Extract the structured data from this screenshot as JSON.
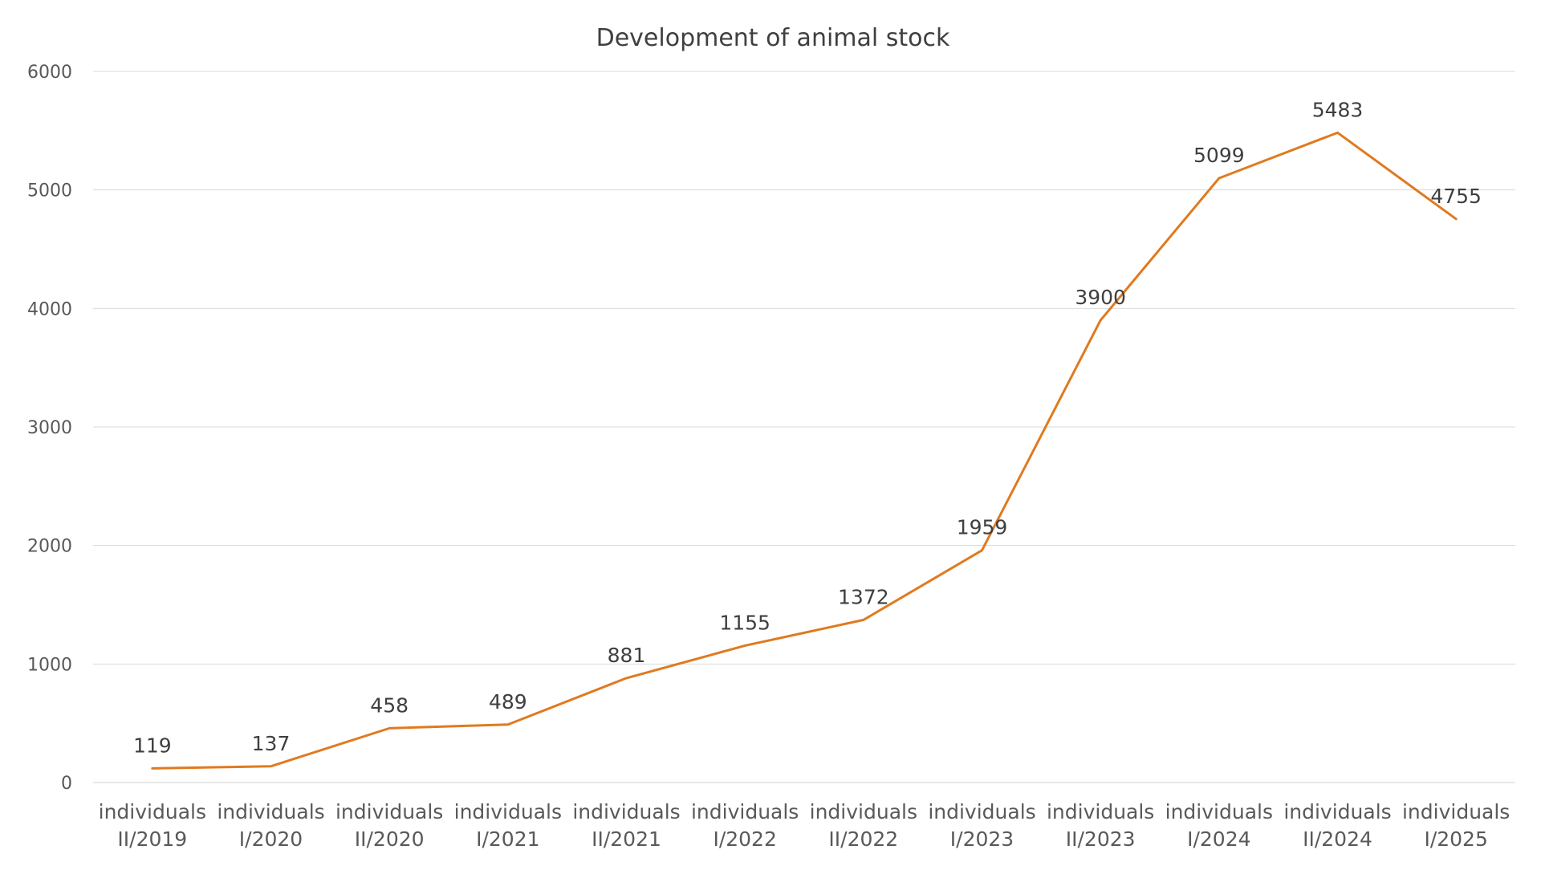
{
  "chart_data": {
    "type": "line",
    "title": "Development of animal stock",
    "xlabel": "",
    "ylabel": "",
    "categories": [
      [
        "individuals",
        "II/2019"
      ],
      [
        "individuals",
        "I/2020"
      ],
      [
        "individuals",
        "II/2020"
      ],
      [
        "individuals",
        "I/2021"
      ],
      [
        "individuals",
        "II/2021"
      ],
      [
        "individuals",
        "I/2022"
      ],
      [
        "individuals",
        "II/2022"
      ],
      [
        "individuals",
        "I/2023"
      ],
      [
        "individuals",
        "II/2023"
      ],
      [
        "individuals",
        "I/2024"
      ],
      [
        "individuals",
        "II/2024"
      ],
      [
        "individuals",
        "I/2025"
      ]
    ],
    "series": [
      {
        "values": [
          119,
          137,
          458,
          489,
          881,
          1155,
          1372,
          1959,
          3900,
          5099,
          5483,
          4755
        ],
        "color": "#E07A1F"
      }
    ],
    "ylim": [
      0,
      6000
    ],
    "yticks": [
      0,
      1000,
      2000,
      3000,
      4000,
      5000,
      6000
    ],
    "grid": true,
    "legend": "none",
    "data_labels": true
  }
}
